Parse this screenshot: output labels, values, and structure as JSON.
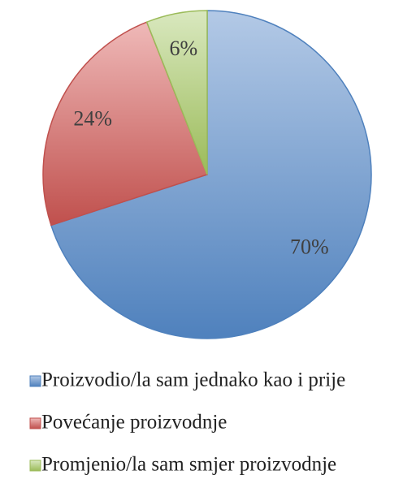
{
  "chart_data": {
    "type": "pie",
    "categories": [
      "Proizvodio/la sam jednako kao i prije",
      "Povećanje proizvodnje",
      "Promjenio/la sam smjer proizvodnje"
    ],
    "values": [
      70,
      24,
      6
    ],
    "value_labels": [
      "70%",
      "24%",
      "6%"
    ],
    "colors": [
      "#4f81bd",
      "#c0504d",
      "#9bbb59"
    ],
    "light_colors": [
      "#b3c9e6",
      "#efb9b8",
      "#d9e8bf"
    ],
    "legend": "bottom"
  }
}
